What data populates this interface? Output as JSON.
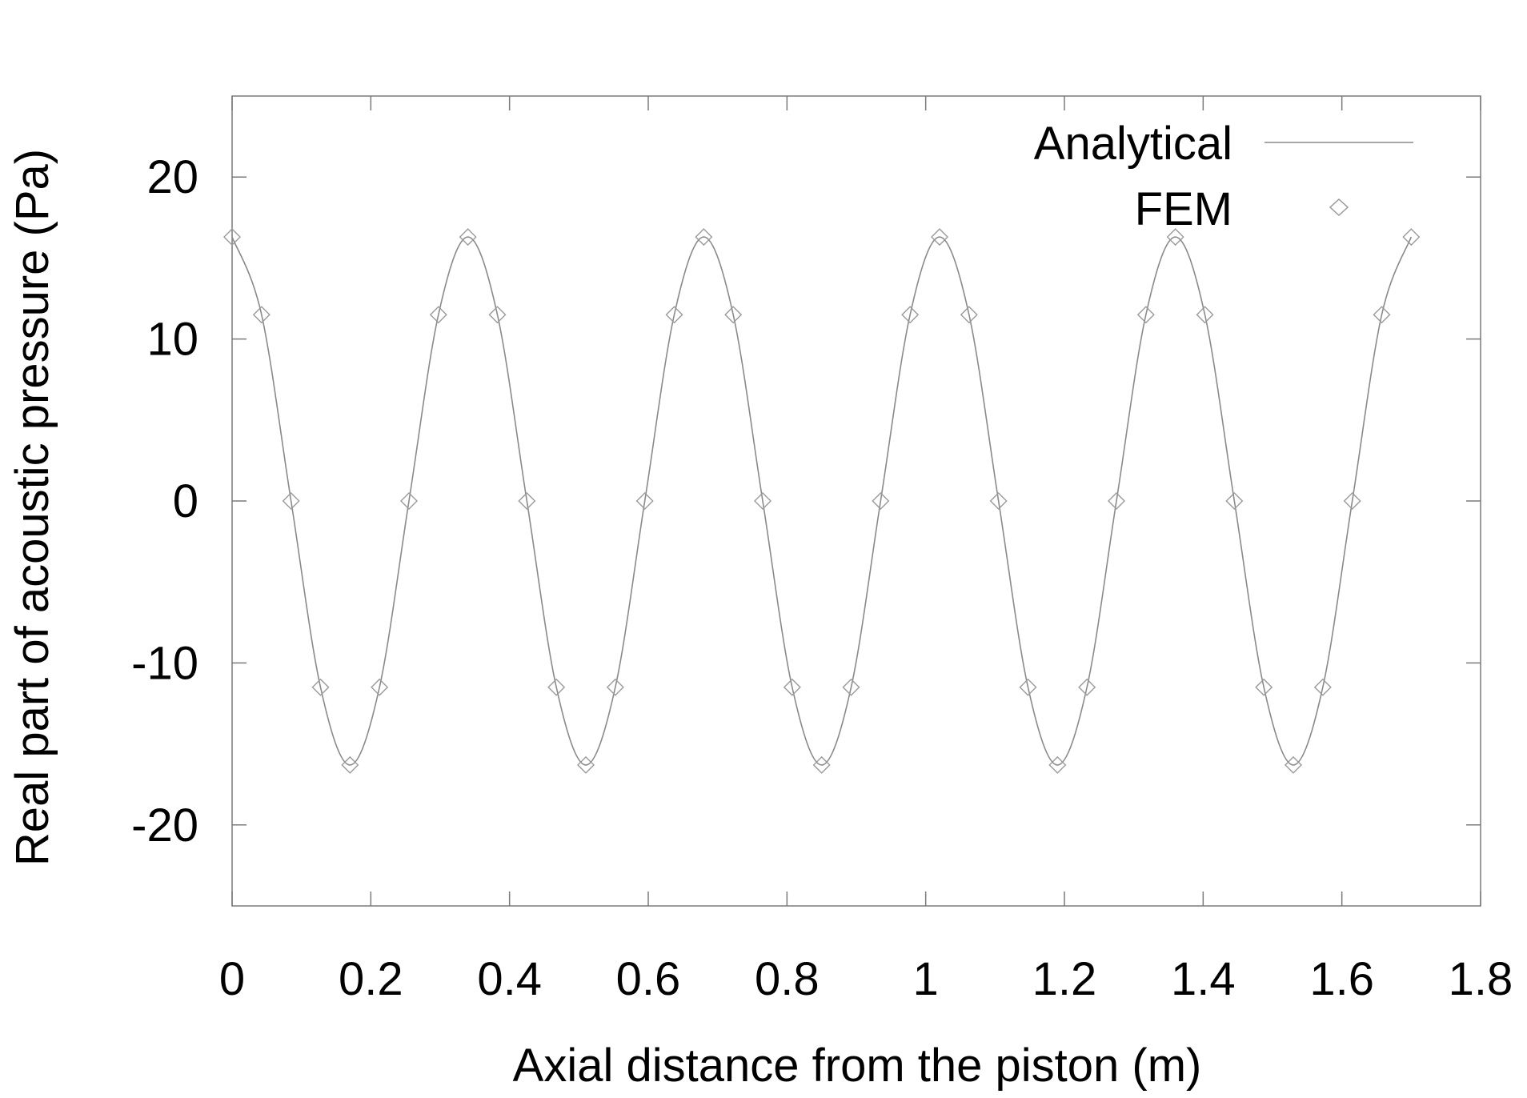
{
  "chart_data": {
    "type": "line",
    "title": "",
    "xlabel": "Axial distance from the piston (m)",
    "ylabel": "Real part of acoustic pressure (Pa)",
    "xlim": [
      0,
      1.8
    ],
    "ylim": [
      -25,
      25
    ],
    "xticks": [
      0,
      0.2,
      0.4,
      0.6,
      0.8,
      1,
      1.2,
      1.4,
      1.6,
      1.8
    ],
    "xtick_labels": [
      "0",
      "0.2",
      "0.4",
      "0.6",
      "0.8",
      "1",
      "1.2",
      "1.4",
      "1.6",
      "1.8"
    ],
    "yticks": [
      -20,
      -10,
      0,
      10,
      20
    ],
    "ytick_labels": [
      "-20",
      "-10",
      "0",
      "10",
      "20"
    ],
    "grid": false,
    "legend": {
      "position": "top-right",
      "entries": [
        {
          "label": "Analytical",
          "style": "line"
        },
        {
          "label": "FEM",
          "style": "diamond-marker"
        }
      ]
    },
    "colors": {
      "analytical": "#8a8a8a",
      "fem": "#9a9a9a",
      "axes": "#7a7a7a"
    },
    "series": [
      {
        "name": "Analytical",
        "style": "line",
        "x": [
          0,
          0.0425,
          0.085,
          0.1275,
          0.17,
          0.2125,
          0.255,
          0.2975,
          0.34,
          0.3825,
          0.425,
          0.4675,
          0.51,
          0.5525,
          0.595,
          0.6375,
          0.68,
          0.7225,
          0.765,
          0.8075,
          0.85,
          0.8925,
          0.935,
          0.9775,
          1.02,
          1.0625,
          1.105,
          1.1475,
          1.19,
          1.2325,
          1.275,
          1.3175,
          1.36,
          1.4025,
          1.445,
          1.4875,
          1.53,
          1.5725,
          1.615,
          1.6575,
          1.7
        ],
        "y": [
          16.3,
          11.5,
          0,
          -11.5,
          -16.3,
          -11.5,
          0,
          11.5,
          16.3,
          11.5,
          0,
          -11.5,
          -16.3,
          -11.5,
          0,
          11.5,
          16.3,
          11.5,
          0,
          -11.5,
          -16.3,
          -11.5,
          0,
          11.5,
          16.3,
          11.5,
          0,
          -11.5,
          -16.3,
          -11.5,
          0,
          11.5,
          16.3,
          11.5,
          0,
          -11.5,
          -16.3,
          -11.5,
          0,
          11.5,
          16.3
        ]
      },
      {
        "name": "FEM",
        "style": "diamond-marker",
        "x": [
          0,
          0.0425,
          0.085,
          0.1275,
          0.17,
          0.2125,
          0.255,
          0.2975,
          0.34,
          0.3825,
          0.425,
          0.4675,
          0.51,
          0.5525,
          0.595,
          0.6375,
          0.68,
          0.7225,
          0.765,
          0.8075,
          0.85,
          0.8925,
          0.935,
          0.9775,
          1.02,
          1.0625,
          1.105,
          1.1475,
          1.19,
          1.2325,
          1.275,
          1.3175,
          1.36,
          1.4025,
          1.445,
          1.4875,
          1.53,
          1.5725,
          1.615,
          1.6575,
          1.7
        ],
        "y": [
          16.3,
          11.5,
          0,
          -11.5,
          -16.3,
          -11.5,
          0,
          11.5,
          16.3,
          11.5,
          0,
          -11.5,
          -16.3,
          -11.5,
          0,
          11.5,
          16.3,
          11.5,
          0,
          -11.5,
          -16.3,
          -11.5,
          0,
          11.5,
          16.3,
          11.5,
          0,
          -11.5,
          -16.3,
          -11.5,
          0,
          11.5,
          16.3,
          11.5,
          0,
          -11.5,
          -16.3,
          -11.5,
          0,
          11.5,
          16.3
        ]
      }
    ]
  }
}
